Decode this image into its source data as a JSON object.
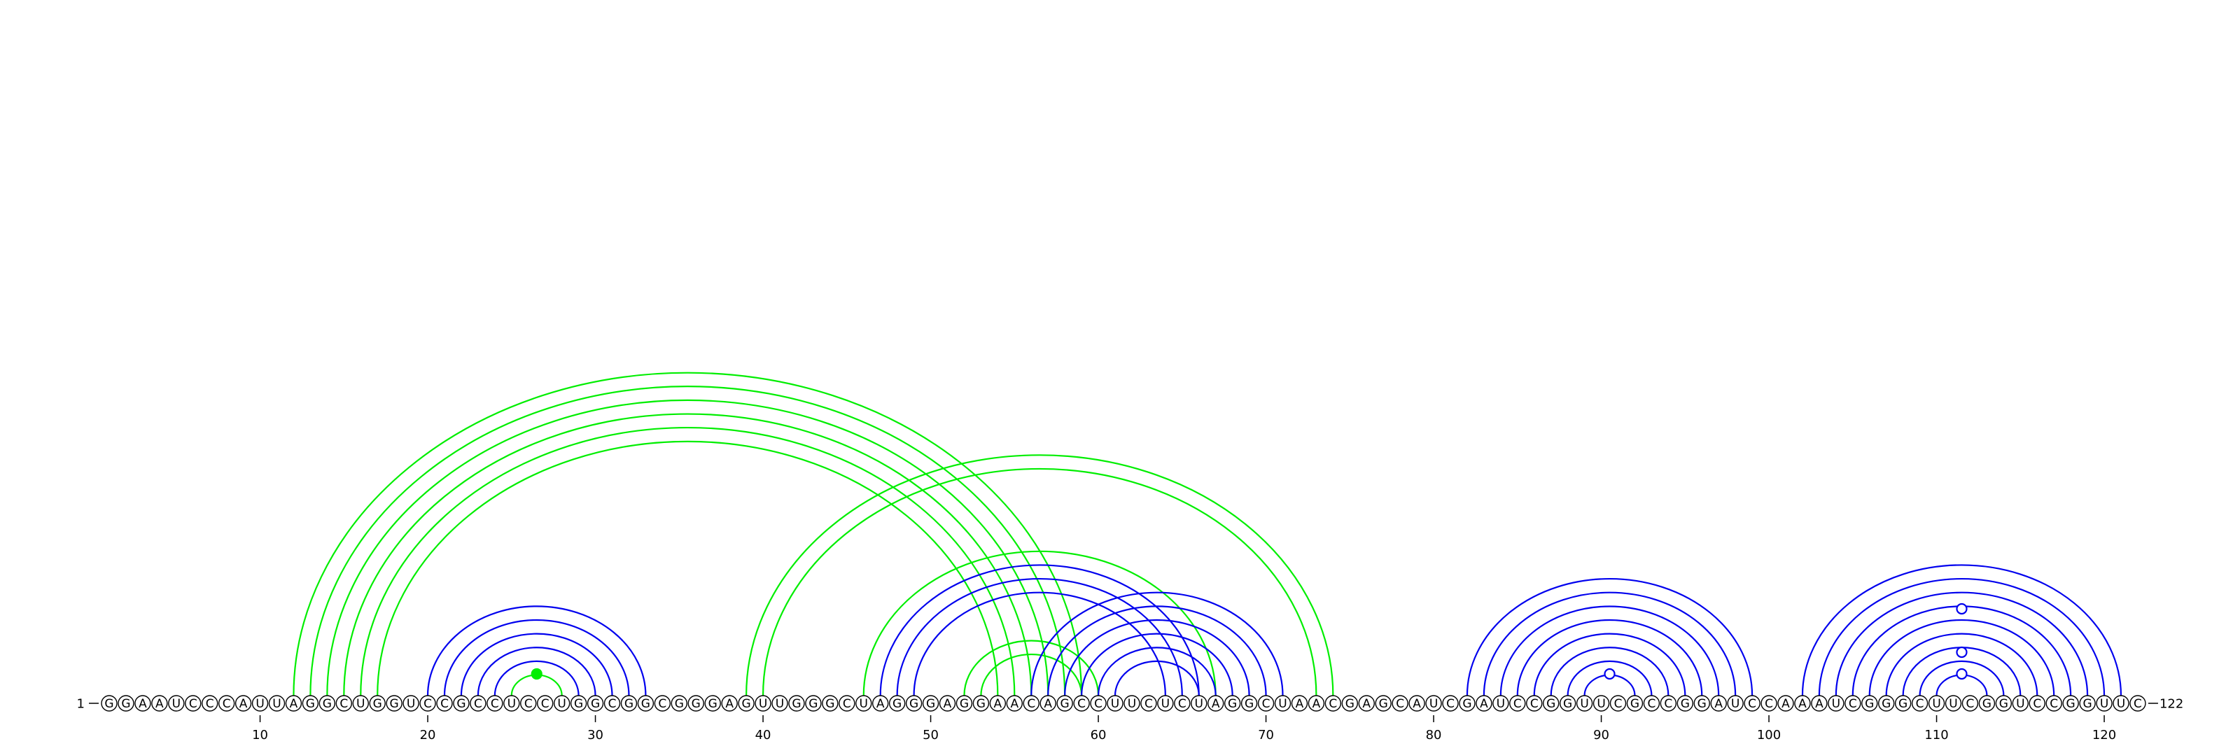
{
  "chart_data": {
    "type": "arc-diagram",
    "sequence": "GGAAUCCCAUUAGGCUGGUCCGCCUCCUGGCGGCGGGAGUUGGGCUAGGGAGGAACAGCCUUCUCUAGGCUAACGAGCAUCGAUCCGGUUCGCCGGAUCCAAAUCGGGCUUCGGUCCGGUUC",
    "start_label": "1",
    "end_label": "122",
    "ticks": [
      10,
      20,
      30,
      40,
      50,
      60,
      70,
      80,
      90,
      100,
      110,
      120
    ],
    "colors": {
      "blue": "#0000ee",
      "green": "#00ee00",
      "background": "#ffffff",
      "text": "#000000"
    },
    "pairs": [
      {
        "i": 12,
        "j": 59,
        "color": "green"
      },
      {
        "i": 13,
        "j": 58,
        "color": "green"
      },
      {
        "i": 14,
        "j": 57,
        "color": "green"
      },
      {
        "i": 15,
        "j": 56,
        "color": "green"
      },
      {
        "i": 16,
        "j": 55,
        "color": "green"
      },
      {
        "i": 17,
        "j": 54,
        "color": "green"
      },
      {
        "i": 20,
        "j": 33,
        "color": "blue"
      },
      {
        "i": 21,
        "j": 32,
        "color": "blue"
      },
      {
        "i": 22,
        "j": 31,
        "color": "blue"
      },
      {
        "i": 23,
        "j": 30,
        "color": "blue"
      },
      {
        "i": 24,
        "j": 29,
        "color": "blue"
      },
      {
        "i": 25,
        "j": 28,
        "color": "green"
      },
      {
        "i": 39,
        "j": 74,
        "color": "green"
      },
      {
        "i": 40,
        "j": 73,
        "color": "green"
      },
      {
        "i": 46,
        "j": 67,
        "color": "green"
      },
      {
        "i": 47,
        "j": 66,
        "color": "blue"
      },
      {
        "i": 48,
        "j": 65,
        "color": "blue"
      },
      {
        "i": 49,
        "j": 64,
        "color": "blue"
      },
      {
        "i": 52,
        "j": 60,
        "color": "green"
      },
      {
        "i": 53,
        "j": 59,
        "color": "green"
      },
      {
        "i": 56,
        "j": 71,
        "color": "blue"
      },
      {
        "i": 57,
        "j": 70,
        "color": "blue"
      },
      {
        "i": 58,
        "j": 69,
        "color": "blue"
      },
      {
        "i": 59,
        "j": 68,
        "color": "blue"
      },
      {
        "i": 60,
        "j": 67,
        "color": "blue"
      },
      {
        "i": 61,
        "j": 66,
        "color": "blue"
      },
      {
        "i": 82,
        "j": 99,
        "color": "blue"
      },
      {
        "i": 83,
        "j": 98,
        "color": "blue"
      },
      {
        "i": 84,
        "j": 97,
        "color": "blue"
      },
      {
        "i": 85,
        "j": 96,
        "color": "blue"
      },
      {
        "i": 86,
        "j": 95,
        "color": "blue"
      },
      {
        "i": 87,
        "j": 94,
        "color": "blue"
      },
      {
        "i": 88,
        "j": 93,
        "color": "blue"
      },
      {
        "i": 89,
        "j": 92,
        "color": "blue"
      },
      {
        "i": 102,
        "j": 121,
        "color": "blue"
      },
      {
        "i": 103,
        "j": 120,
        "color": "blue"
      },
      {
        "i": 104,
        "j": 119,
        "color": "blue"
      },
      {
        "i": 105,
        "j": 118,
        "color": "blue"
      },
      {
        "i": 106,
        "j": 117,
        "color": "blue"
      },
      {
        "i": 107,
        "j": 116,
        "color": "blue"
      },
      {
        "i": 108,
        "j": 115,
        "color": "blue"
      },
      {
        "i": 109,
        "j": 114,
        "color": "blue"
      },
      {
        "i": 110,
        "j": 113,
        "color": "blue"
      }
    ],
    "markers": [
      {
        "position": 26.5,
        "level": 1,
        "style": "filled",
        "color": "green"
      },
      {
        "position": 90.5,
        "level": 1,
        "style": "open",
        "color": "blue"
      },
      {
        "position": 111.5,
        "level": 1,
        "style": "open",
        "color": "blue"
      },
      {
        "position": 111.5,
        "level": 2,
        "style": "open",
        "color": "blue"
      },
      {
        "position": 111.5,
        "level": 4,
        "style": "open",
        "color": "blue"
      }
    ]
  }
}
